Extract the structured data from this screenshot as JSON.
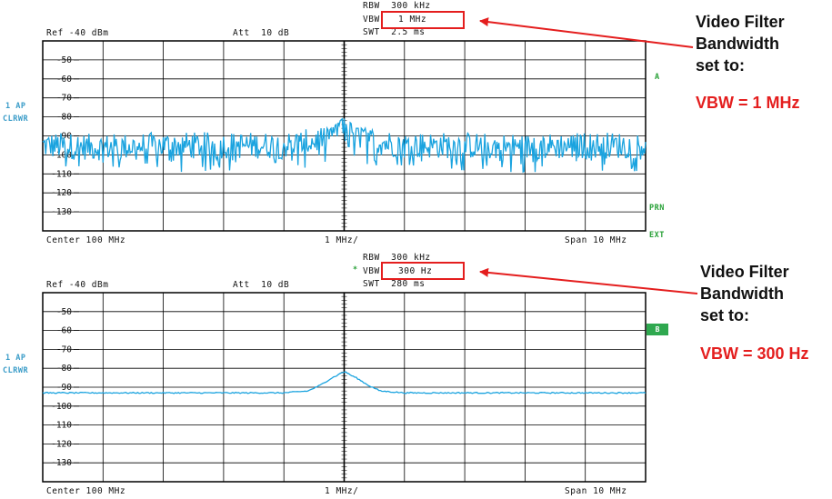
{
  "chart_data": [
    {
      "type": "line",
      "panel": "top",
      "ref_level": "Ref -40 dBm",
      "att": "Att  10 dB",
      "rbw": "RBW  300 kHz",
      "vbw_label": "VBW",
      "vbw_value": "1 MHz",
      "swt": "SWT  2.5 ms",
      "trace_mode_1": "1 AP",
      "trace_mode_2": "CLRWR",
      "trace_letter": "A",
      "indicators": [
        "PRN"
      ],
      "center": "Center 100 MHz",
      "div": "1 MHz/",
      "span": "Span 10 MHz",
      "y_ticks": [
        "-50",
        "-60",
        "-70",
        "-80",
        "-90",
        "-100",
        "-110",
        "-120",
        "-130"
      ],
      "ylim": [
        -140,
        -40
      ],
      "xlim": [
        95,
        105
      ],
      "series": [
        {
          "x": [
            95,
            96,
            97,
            98,
            99,
            99.5,
            99.8,
            100,
            100.2,
            100.5,
            101,
            102,
            103,
            104,
            105
          ],
          "y": [
            -95,
            -96,
            -95,
            -95,
            -95,
            -93,
            -88,
            -82,
            -88,
            -93,
            -95,
            -95,
            -96,
            -95,
            -95
          ],
          "noise_band_dB": [
            -86,
            -109
          ]
        }
      ],
      "color": "#1aa3df"
    },
    {
      "type": "line",
      "panel": "bottom",
      "ref_level": "Ref -40 dBm",
      "att": "Att  10 dB",
      "rbw": "RBW  300 kHz",
      "vbw_marker": "*",
      "vbw_label": "VBW",
      "vbw_value": "300 Hz",
      "swt": "SWT  280 ms",
      "trace_mode_1": "1 AP",
      "trace_mode_2": "CLRWR",
      "trace_letter": "B",
      "indicators": [
        "EXT"
      ],
      "center": "Center 100 MHz",
      "div": "1 MHz/",
      "span": "Span 10 MHz",
      "y_ticks": [
        "-50",
        "-60",
        "-70",
        "-80",
        "-90",
        "-100",
        "-110",
        "-120",
        "-130"
      ],
      "ylim": [
        -140,
        -40
      ],
      "xlim": [
        95,
        105
      ],
      "series": [
        {
          "x": [
            95,
            96,
            97,
            98,
            99,
            99.4,
            99.6,
            99.8,
            100,
            100.2,
            100.4,
            100.6,
            101,
            102,
            103,
            104,
            105
          ],
          "y": [
            -93,
            -93,
            -93,
            -93,
            -93,
            -92,
            -89,
            -85,
            -82,
            -85,
            -89,
            -92,
            -93,
            -93,
            -93,
            -93,
            -93
          ]
        }
      ],
      "color": "#1aa3df"
    }
  ],
  "annotations": [
    {
      "line1": "Video Filter",
      "line2": "Bandwidth",
      "line3": "set to:",
      "value": "VBW = 1 MHz"
    },
    {
      "line1": "Video Filter",
      "line2": "Bandwidth",
      "line3": "set to:",
      "value": "VBW = 300 Hz"
    }
  ],
  "colors": {
    "trace": "#1aa3df",
    "arrow": "#e41e1e",
    "highlight_box": "#e41e1e",
    "side_text": "#3a9cc8",
    "indicator": "#27a036"
  }
}
